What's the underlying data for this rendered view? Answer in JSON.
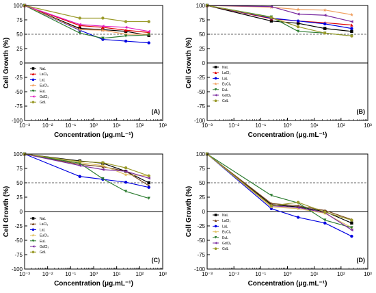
{
  "chart_data": [
    {
      "type": "line",
      "panel_label": "(A)",
      "xlabel": "Concentration (μg.mL⁻¹)",
      "ylabel": "Cell Growth (%)",
      "xscale": "log",
      "xlim": [
        0.001,
        1000
      ],
      "ylim": [
        -100,
        100
      ],
      "xticks": [
        "10⁻³",
        "10⁻²",
        "10⁻¹",
        "10⁰",
        "10¹",
        "10²",
        "10³"
      ],
      "yticks": [
        "-100",
        "-75",
        "-50",
        "-25",
        "0",
        "25",
        "50",
        "75",
        "100"
      ],
      "reference_line": 50,
      "legend_position": "left",
      "x": [
        0.001,
        0.25,
        2.5,
        25,
        250
      ],
      "series": [
        {
          "name": "NaL",
          "color": "#000000",
          "marker": "square",
          "values": [
            100,
            60,
            58,
            55,
            48
          ]
        },
        {
          "name": "LaCl₃",
          "color": "#e00000",
          "marker": "triangle-up",
          "values": [
            100,
            65,
            62,
            57,
            53
          ]
        },
        {
          "name": "LaL",
          "color": "#0000e0",
          "marker": "circle",
          "values": [
            100,
            57,
            41,
            38,
            35
          ]
        },
        {
          "name": "EuCl₃",
          "color": "#f0a060",
          "marker": "star",
          "values": [
            100,
            58,
            57,
            50,
            50
          ]
        },
        {
          "name": "EuL",
          "color": "#2e7d32",
          "marker": "triangle-down",
          "values": [
            100,
            52,
            43,
            47,
            49
          ]
        },
        {
          "name": "GdCl₃",
          "color": "#e020c0",
          "marker": "triangle-left",
          "values": [
            100,
            67,
            64,
            62,
            55
          ]
        },
        {
          "name": "GdL",
          "color": "#9a9a2a",
          "marker": "circle",
          "values": [
            100,
            78,
            78,
            72,
            72
          ]
        }
      ]
    },
    {
      "type": "line",
      "panel_label": "(B)",
      "xlabel": "Concentration (μg.mL⁻¹)",
      "ylabel": "Cell Growth (%)",
      "xscale": "log",
      "xlim": [
        0.001,
        1000
      ],
      "ylim": [
        -100,
        100
      ],
      "xticks": [
        "10⁻³",
        "10⁻²",
        "10⁻¹",
        "10⁰",
        "10¹",
        "10²",
        "10³"
      ],
      "yticks": [
        "-100",
        "-75",
        "-50",
        "-25",
        "0",
        "25",
        "50",
        "75",
        "100"
      ],
      "reference_line": 50,
      "legend_position": "left",
      "x": [
        0.001,
        0.25,
        2.5,
        25,
        250
      ],
      "series": [
        {
          "name": "NaL",
          "color": "#000000",
          "marker": "square",
          "values": [
            100,
            73,
            69,
            60,
            55
          ]
        },
        {
          "name": "LaCl₃",
          "color": "#e00000",
          "marker": "triangle-up",
          "values": [
            100,
            77,
            73,
            70,
            66
          ]
        },
        {
          "name": "LaL",
          "color": "#0000e0",
          "marker": "circle",
          "values": [
            100,
            78,
            73,
            68,
            60
          ]
        },
        {
          "name": "EuCl₃",
          "color": "#f0a060",
          "marker": "star",
          "values": [
            100,
            97,
            93,
            92,
            84
          ]
        },
        {
          "name": "EuL",
          "color": "#2e7d32",
          "marker": "triangle-down",
          "values": [
            100,
            80,
            55,
            52,
            47
          ]
        },
        {
          "name": "GdCl₃",
          "color": "#7a2aa0",
          "marker": "triangle-left",
          "values": [
            100,
            98,
            85,
            83,
            72
          ]
        },
        {
          "name": "GdL",
          "color": "#9a9a2a",
          "marker": "circle",
          "values": [
            100,
            79,
            63,
            52,
            47
          ]
        }
      ]
    },
    {
      "type": "line",
      "panel_label": "(C)",
      "xlabel": "Concentration (μg.mL⁻¹)",
      "ylabel": "Cell Growth (%)",
      "xscale": "log",
      "xlim": [
        0.001,
        1000
      ],
      "ylim": [
        -100,
        100
      ],
      "xticks": [
        "10⁻³",
        "10⁻²",
        "10⁻¹",
        "10⁰",
        "10¹",
        "10²",
        "10³"
      ],
      "yticks": [
        "-100",
        "-75",
        "-50",
        "-25",
        "0",
        "25",
        "50",
        "75",
        "100"
      ],
      "reference_line": 50,
      "legend_position": "left",
      "x": [
        0.001,
        0.25,
        2.5,
        25,
        250
      ],
      "series": [
        {
          "name": "NaL",
          "color": "#000000",
          "marker": "square",
          "values": [
            100,
            88,
            84,
            70,
            50
          ]
        },
        {
          "name": "LaCl₃",
          "color": "#7a4a20",
          "marker": "triangle-up",
          "values": [
            100,
            82,
            78,
            70,
            45
          ]
        },
        {
          "name": "LaL",
          "color": "#0000e0",
          "marker": "circle",
          "values": [
            100,
            61,
            56,
            51,
            42
          ]
        },
        {
          "name": "EuCl₃",
          "color": "#e0c060",
          "marker": "star",
          "values": [
            100,
            85,
            80,
            64,
            62
          ]
        },
        {
          "name": "EuL",
          "color": "#2e7d32",
          "marker": "triangle-down",
          "values": [
            100,
            84,
            57,
            35,
            23
          ]
        },
        {
          "name": "GdCl₃",
          "color": "#7a2aa0",
          "marker": "triangle-left",
          "values": [
            100,
            80,
            73,
            70,
            58
          ]
        },
        {
          "name": "GdL",
          "color": "#9a9a2a",
          "marker": "circle",
          "values": [
            100,
            87,
            85,
            76,
            62
          ]
        }
      ]
    },
    {
      "type": "line",
      "panel_label": "(D)",
      "xlabel": "Concentration (μg.mL⁻¹)",
      "ylabel": "Cell Growth (%)",
      "xscale": "log",
      "xlim": [
        0.001,
        1000
      ],
      "ylim": [
        -100,
        100
      ],
      "xticks": [
        "10⁻³",
        "10⁻²",
        "10⁻¹",
        "10⁰",
        "10¹",
        "10²",
        "10³"
      ],
      "yticks": [
        "-100",
        "-75",
        "-50",
        "-25",
        "0",
        "25",
        "50",
        "75",
        "100"
      ],
      "reference_line": 50,
      "legend_position": "left",
      "x": [
        0.001,
        0.25,
        2.5,
        25,
        250
      ],
      "series": [
        {
          "name": "NaL",
          "color": "#000000",
          "marker": "square",
          "values": [
            100,
            12,
            8,
            0,
            -20
          ]
        },
        {
          "name": "LaCl₃",
          "color": "#7a4a20",
          "marker": "triangle-up",
          "values": [
            100,
            14,
            10,
            2,
            -14
          ]
        },
        {
          "name": "LaL",
          "color": "#0000e0",
          "marker": "circle",
          "values": [
            100,
            5,
            -10,
            -20,
            -43
          ]
        },
        {
          "name": "EuCl₃",
          "color": "#e0c060",
          "marker": "star",
          "values": [
            100,
            8,
            5,
            -3,
            -28
          ]
        },
        {
          "name": "EuL",
          "color": "#2e7d32",
          "marker": "triangle-down",
          "values": [
            100,
            28,
            15,
            -15,
            -28
          ]
        },
        {
          "name": "GdCl₃",
          "color": "#7a2aa0",
          "marker": "triangle-left",
          "values": [
            100,
            10,
            7,
            -2,
            -32
          ]
        },
        {
          "name": "GdL",
          "color": "#9a9a2a",
          "marker": "circle",
          "values": [
            100,
            10,
            16,
            -1,
            -15
          ]
        }
      ]
    }
  ]
}
